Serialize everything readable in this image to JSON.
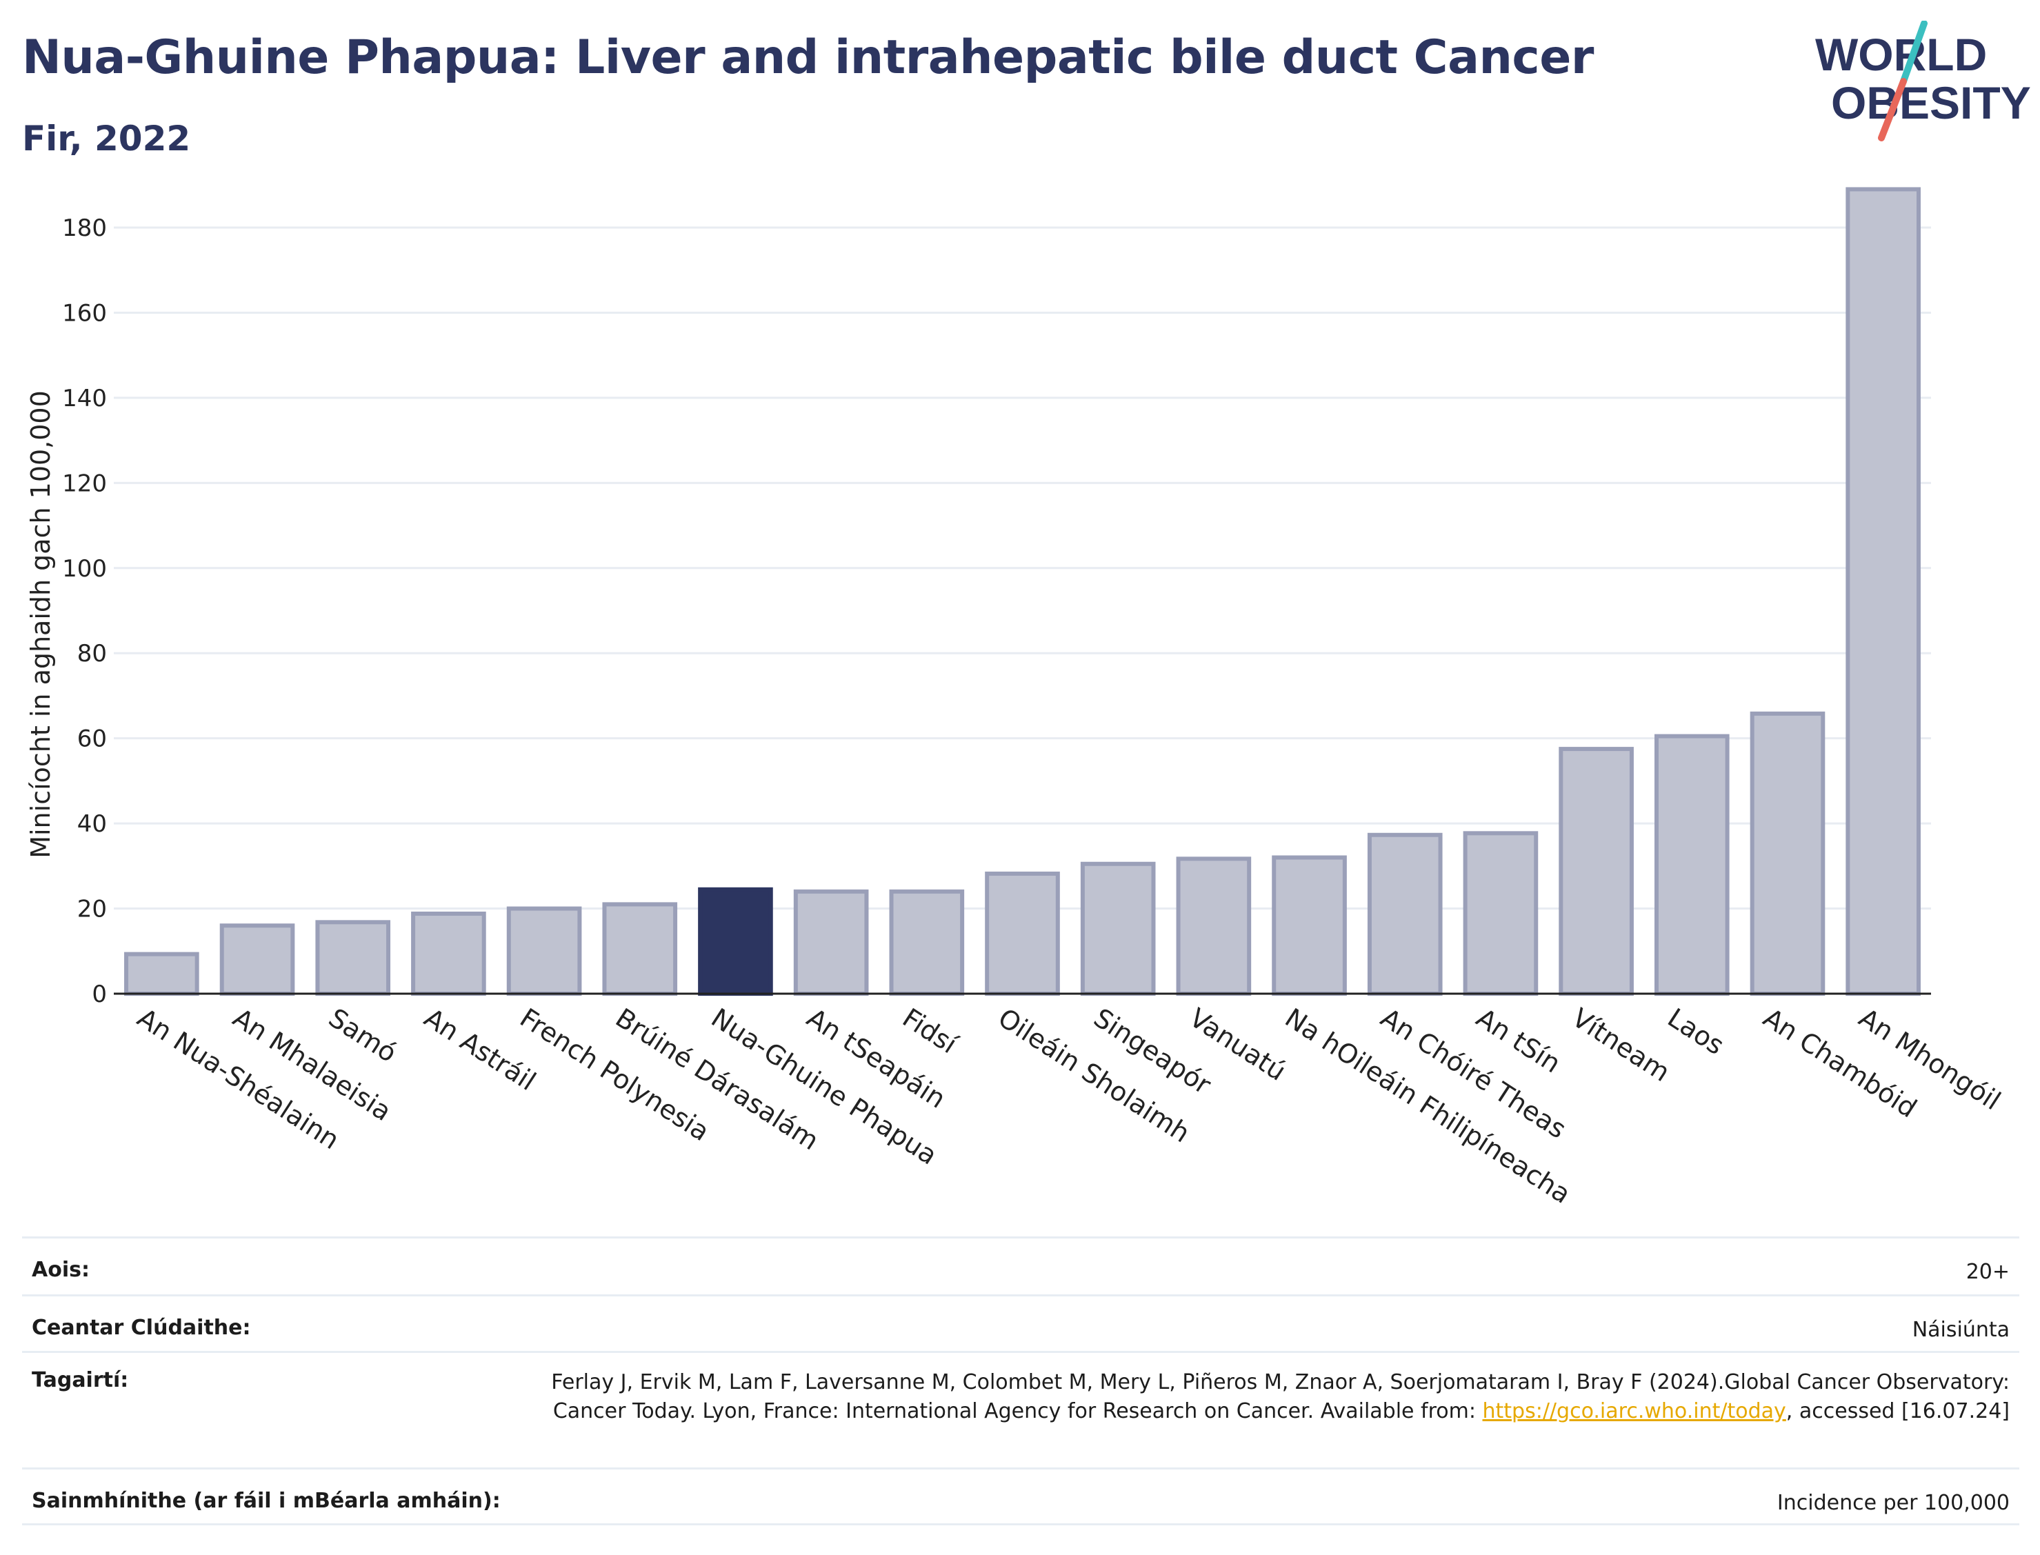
{
  "header": {
    "title": "Nua-Ghuine Phapua: Liver and intrahepatic bile duct Cancer",
    "subtitle": "Fir, 2022"
  },
  "logo": {
    "line1": "WORLD",
    "line2": "OBESITY"
  },
  "colors": {
    "title": "#2c3560",
    "bar": "#bfc2d0",
    "bar_border": "#9a9fb8",
    "highlight": "#2c3560",
    "grid": "#e8ecf2",
    "logo_teal": "#3bbfc0",
    "logo_red": "#e8675a",
    "link": "#e6a800"
  },
  "chart_data": {
    "type": "bar",
    "ylabel": "Minicíocht in aghaidh gach 100,000",
    "xlabel": "",
    "ylim": [
      0,
      190
    ],
    "yticks": [
      0,
      20,
      40,
      60,
      80,
      100,
      120,
      140,
      160,
      180
    ],
    "grid": true,
    "highlight_category": "Nua-Ghuine Phapua",
    "categories": [
      "An Nua-Shéalainn",
      "An Mhalaeisia",
      "Samó",
      "An Astráil",
      "French Polynesia",
      "Brúiné Dárasalám",
      "Nua-Ghuine Phapua",
      "An tSeapáin",
      "Fidsí",
      "Oileáin Sholaimh",
      "Singeapór",
      "Vanuatú",
      "Na hOileáin Fhilipíneacha",
      "An Chóiré Theas",
      "An tSín",
      "Vítneam",
      "Laos",
      "An Chambóid",
      "An Mhongóil"
    ],
    "values": [
      9.3,
      16,
      16.8,
      18.8,
      20,
      21,
      24.5,
      24,
      24,
      28.2,
      30.5,
      31.7,
      32,
      37.3,
      37.7,
      57.5,
      60.5,
      65.8,
      189
    ]
  },
  "meta": [
    {
      "key": "Aois:",
      "value": "20+"
    },
    {
      "key": "Ceantar Clúdaithe:",
      "value": "Náisiúnta"
    },
    {
      "key": "Tagairtí:",
      "value_pre": "Ferlay J, Ervik M, Lam F, Laversanne M, Colombet M, Mery L, Piñeros M, Znaor A, Soerjomataram I, Bray F (2024).Global Cancer Observatory: Cancer Today. Lyon, France: International Agency for Research on Cancer. Available from: ",
      "link": "https://gco.iarc.who.int/today",
      "value_post": ", accessed [16.07.24]"
    },
    {
      "key": "Sainmhínithe (ar fáil i mBéarla amháin):",
      "value": "Incidence per 100,000"
    }
  ]
}
